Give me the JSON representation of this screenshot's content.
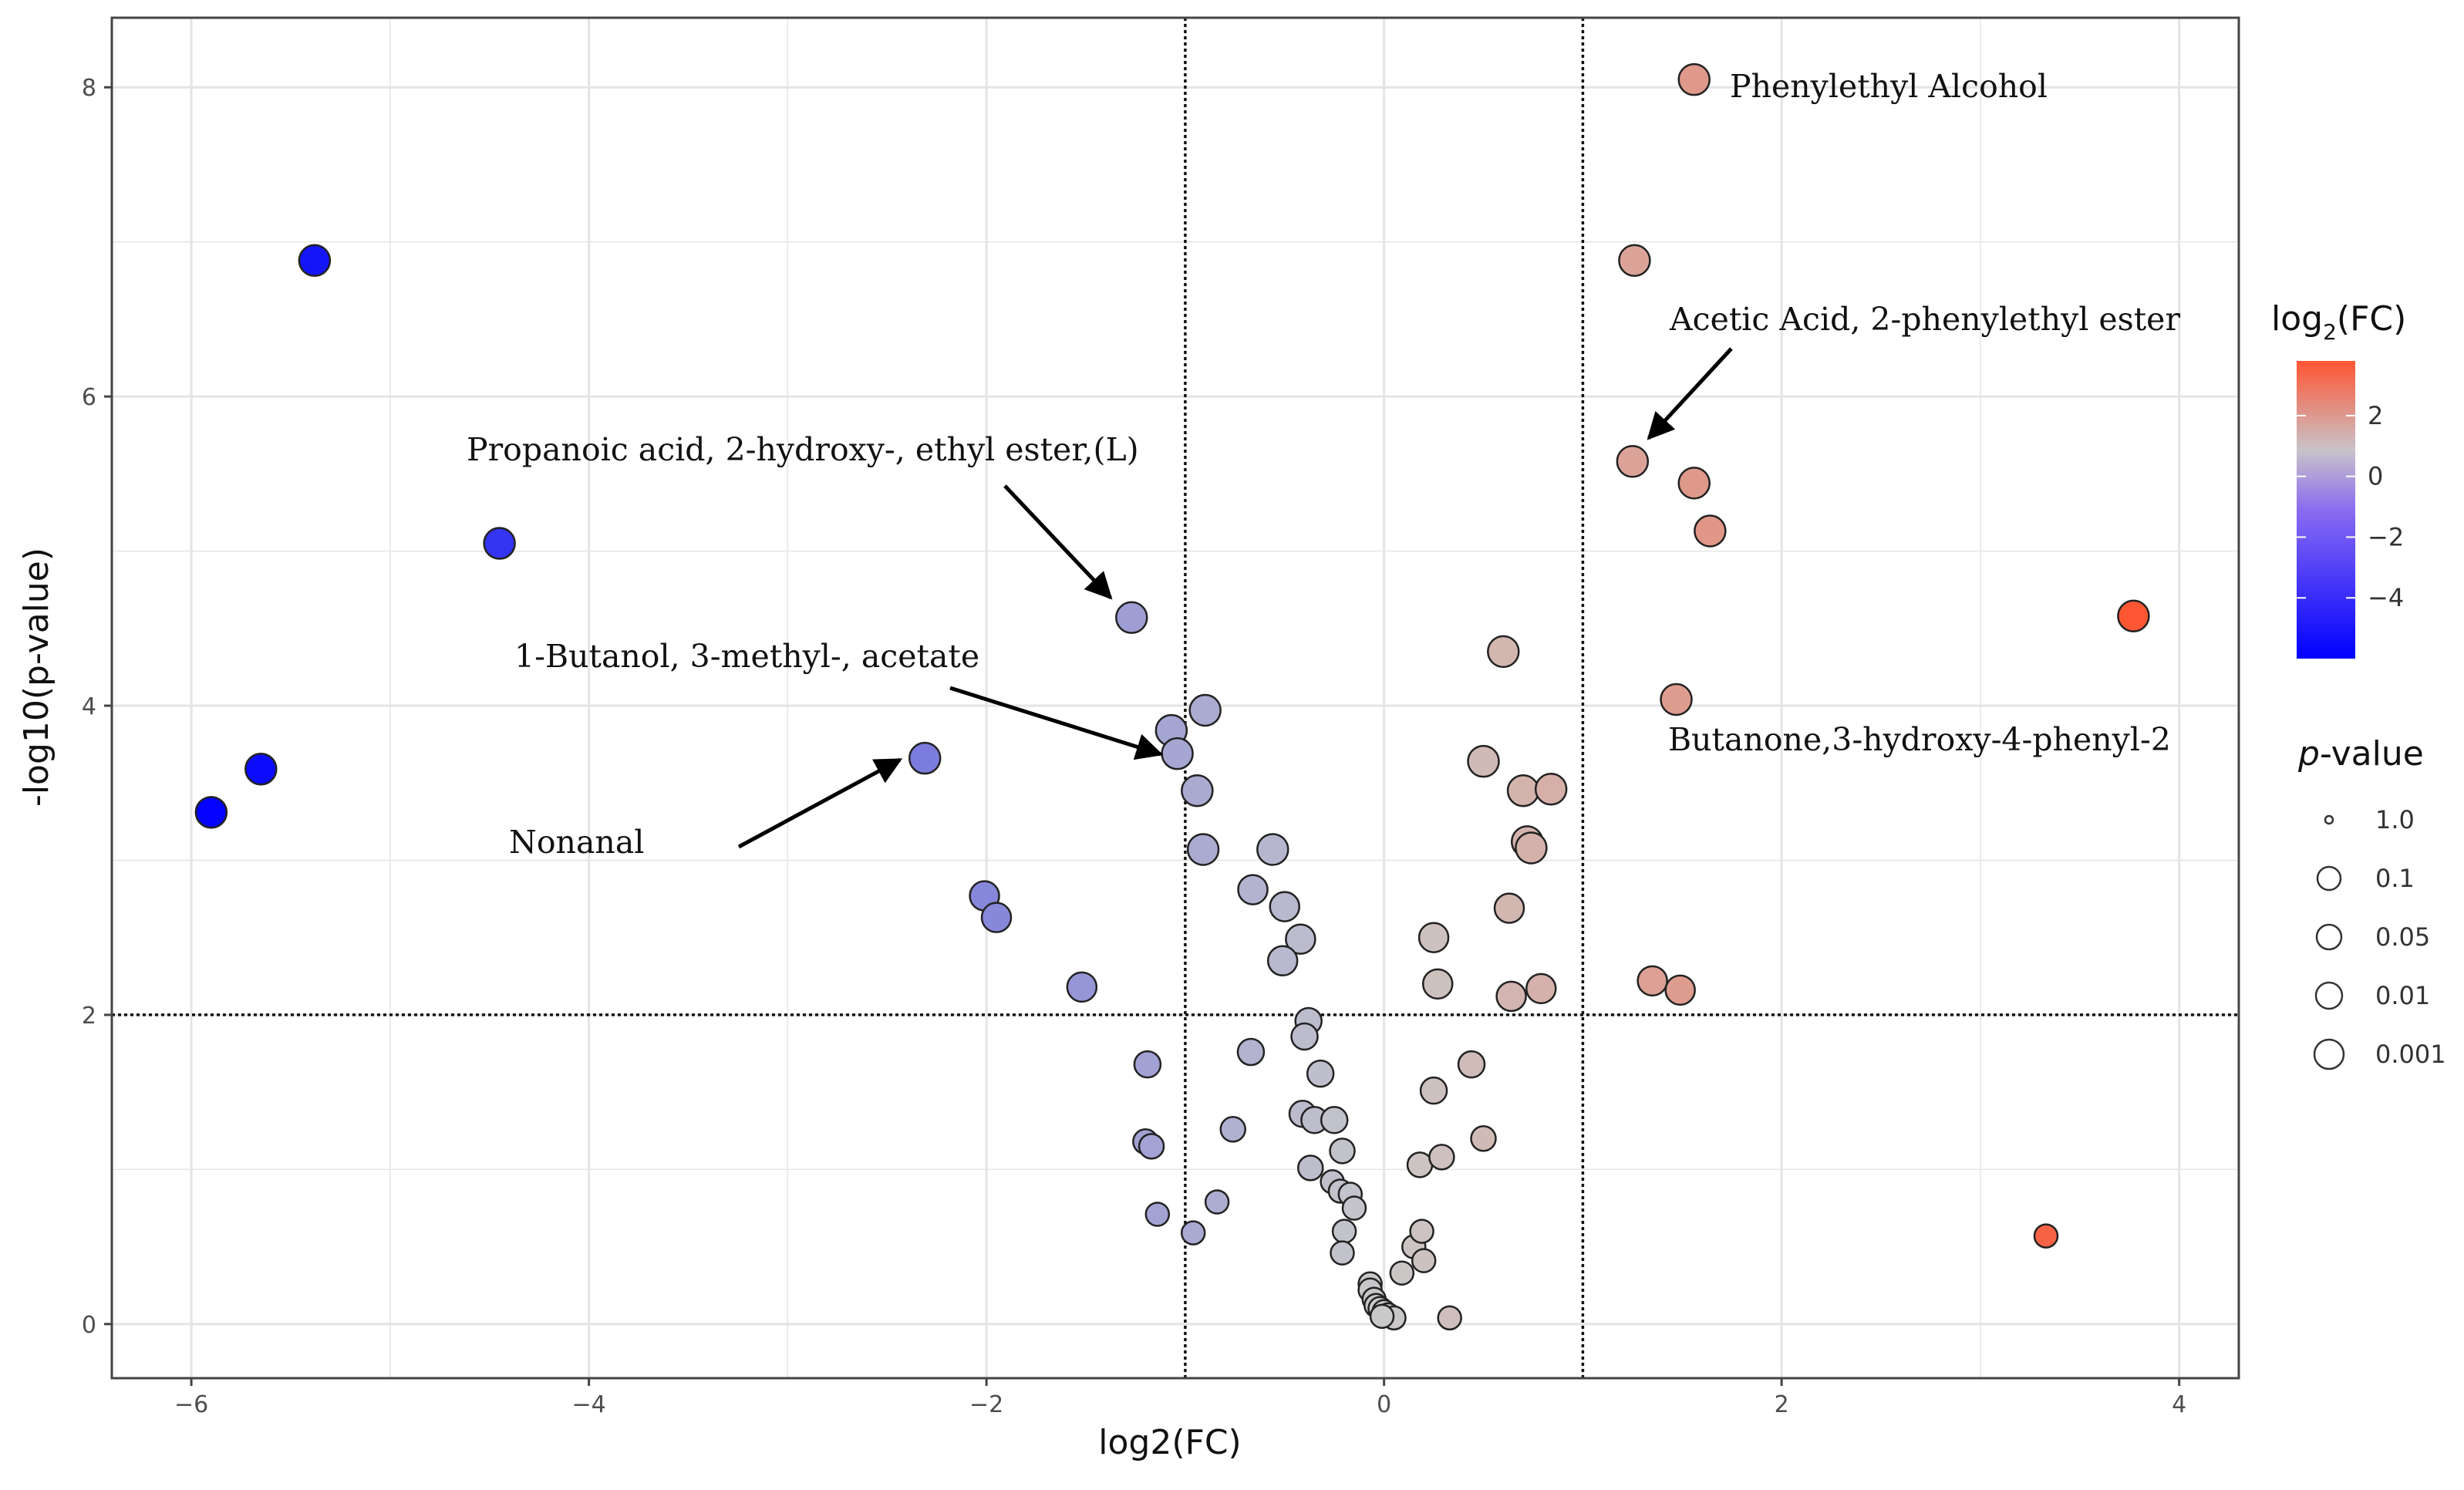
{
  "chart_data": {
    "type": "scatter",
    "title": "",
    "xlabel": "log2(FC)",
    "ylabel": "-log10(p-value)",
    "xlim": [
      -6.4,
      4.3
    ],
    "ylim": [
      -0.35,
      8.45
    ],
    "x_ticks": [
      -6,
      -4,
      -2,
      0,
      2,
      4
    ],
    "y_ticks": [
      0,
      2,
      4,
      6,
      8
    ],
    "grid": true,
    "threshold_lines": {
      "x": [
        -1,
        1
      ],
      "y": 2
    },
    "color_scale": {
      "name": "log2(FC)",
      "min": -6,
      "max": 3.8,
      "ticks": [
        2,
        0,
        -2,
        -4
      ],
      "low": "#0000ff",
      "mid": "#c9c9c9",
      "high": "#ff5533"
    },
    "size_legend": {
      "title": "p-value",
      "labels": [
        "1.0",
        "0.1",
        "0.05",
        "0.01",
        "0.001"
      ]
    },
    "points": [
      {
        "x": 1.56,
        "y": 8.05
      },
      {
        "x": 1.26,
        "y": 6.88
      },
      {
        "x": 1.25,
        "y": 5.58
      },
      {
        "x": 1.56,
        "y": 5.44
      },
      {
        "x": 1.64,
        "y": 5.13
      },
      {
        "x": 1.47,
        "y": 4.04
      },
      {
        "x": 1.35,
        "y": 2.22
      },
      {
        "x": 1.49,
        "y": 2.16
      },
      {
        "x": 3.77,
        "y": 4.58
      },
      {
        "x": 3.33,
        "y": 0.57
      },
      {
        "x": -5.38,
        "y": 6.88
      },
      {
        "x": -4.45,
        "y": 5.05
      },
      {
        "x": -5.65,
        "y": 3.59
      },
      {
        "x": -5.9,
        "y": 3.31
      },
      {
        "x": -1.27,
        "y": 4.57
      },
      {
        "x": -2.31,
        "y": 3.66
      },
      {
        "x": -2.01,
        "y": 2.77
      },
      {
        "x": -1.95,
        "y": 2.63
      },
      {
        "x": -1.52,
        "y": 2.18
      },
      {
        "x": -1.07,
        "y": 3.84
      },
      {
        "x": -1.04,
        "y": 3.69
      },
      {
        "x": -0.9,
        "y": 3.97
      },
      {
        "x": -0.94,
        "y": 3.45
      },
      {
        "x": -0.91,
        "y": 3.07
      },
      {
        "x": -0.56,
        "y": 3.07
      },
      {
        "x": -0.66,
        "y": 2.81
      },
      {
        "x": -0.5,
        "y": 2.7
      },
      {
        "x": -0.42,
        "y": 2.49
      },
      {
        "x": -0.51,
        "y": 2.35
      },
      {
        "x": 0.6,
        "y": 4.35
      },
      {
        "x": 0.5,
        "y": 3.64
      },
      {
        "x": 0.7,
        "y": 3.45
      },
      {
        "x": 0.84,
        "y": 3.46
      },
      {
        "x": 0.72,
        "y": 3.12
      },
      {
        "x": 0.74,
        "y": 3.08
      },
      {
        "x": 0.63,
        "y": 2.69
      },
      {
        "x": 0.25,
        "y": 2.5
      },
      {
        "x": 0.27,
        "y": 2.2
      },
      {
        "x": 0.64,
        "y": 2.12
      },
      {
        "x": 0.79,
        "y": 2.17
      },
      {
        "x": -1.19,
        "y": 1.68
      },
      {
        "x": -1.2,
        "y": 1.18
      },
      {
        "x": -1.17,
        "y": 1.15
      },
      {
        "x": -1.14,
        "y": 0.71
      },
      {
        "x": -0.96,
        "y": 0.59
      },
      {
        "x": -0.84,
        "y": 0.79
      },
      {
        "x": -0.76,
        "y": 1.26
      },
      {
        "x": -0.67,
        "y": 1.76
      },
      {
        "x": -0.38,
        "y": 1.96
      },
      {
        "x": -0.4,
        "y": 1.86
      },
      {
        "x": -0.32,
        "y": 1.62
      },
      {
        "x": -0.41,
        "y": 1.36
      },
      {
        "x": -0.35,
        "y": 1.32
      },
      {
        "x": -0.25,
        "y": 1.32
      },
      {
        "x": -0.21,
        "y": 1.12
      },
      {
        "x": -0.37,
        "y": 1.01
      },
      {
        "x": -0.26,
        "y": 0.92
      },
      {
        "x": -0.22,
        "y": 0.86
      },
      {
        "x": -0.17,
        "y": 0.84
      },
      {
        "x": -0.15,
        "y": 0.75
      },
      {
        "x": -0.2,
        "y": 0.6
      },
      {
        "x": -0.21,
        "y": 0.46
      },
      {
        "x": -0.07,
        "y": 0.26
      },
      {
        "x": -0.07,
        "y": 0.22
      },
      {
        "x": -0.05,
        "y": 0.16
      },
      {
        "x": -0.04,
        "y": 0.12
      },
      {
        "x": -0.02,
        "y": 0.1
      },
      {
        "x": 0.0,
        "y": 0.08
      },
      {
        "x": 0.02,
        "y": 0.06
      },
      {
        "x": 0.05,
        "y": 0.04
      },
      {
        "x": -0.01,
        "y": 0.05
      },
      {
        "x": 0.09,
        "y": 0.33
      },
      {
        "x": 0.15,
        "y": 0.5
      },
      {
        "x": 0.19,
        "y": 0.6
      },
      {
        "x": 0.2,
        "y": 0.41
      },
      {
        "x": 0.33,
        "y": 0.04
      },
      {
        "x": 0.18,
        "y": 1.03
      },
      {
        "x": 0.29,
        "y": 1.08
      },
      {
        "x": 0.25,
        "y": 1.51
      },
      {
        "x": 0.44,
        "y": 1.68
      },
      {
        "x": 0.5,
        "y": 1.2
      }
    ],
    "annotations": [
      {
        "label": "Phenylethyl Alcohol",
        "x": 1.56,
        "y": 8.05
      },
      {
        "label": "Acetic Acid, 2-phenylethyl ester",
        "x": 1.25,
        "y": 5.58
      },
      {
        "label": "Propanoic acid, 2-hydroxy-, ethyl ester,(L)",
        "x": -1.27,
        "y": 4.57
      },
      {
        "label": "1-Butanol, 3-methyl-, acetate",
        "x": -1.04,
        "y": 3.69
      },
      {
        "label": "Nonanal",
        "x": -2.31,
        "y": 3.66
      },
      {
        "label": "Butanone,3-hydroxy-4-phenyl-2",
        "x": 1.47,
        "y": 4.04
      }
    ]
  }
}
